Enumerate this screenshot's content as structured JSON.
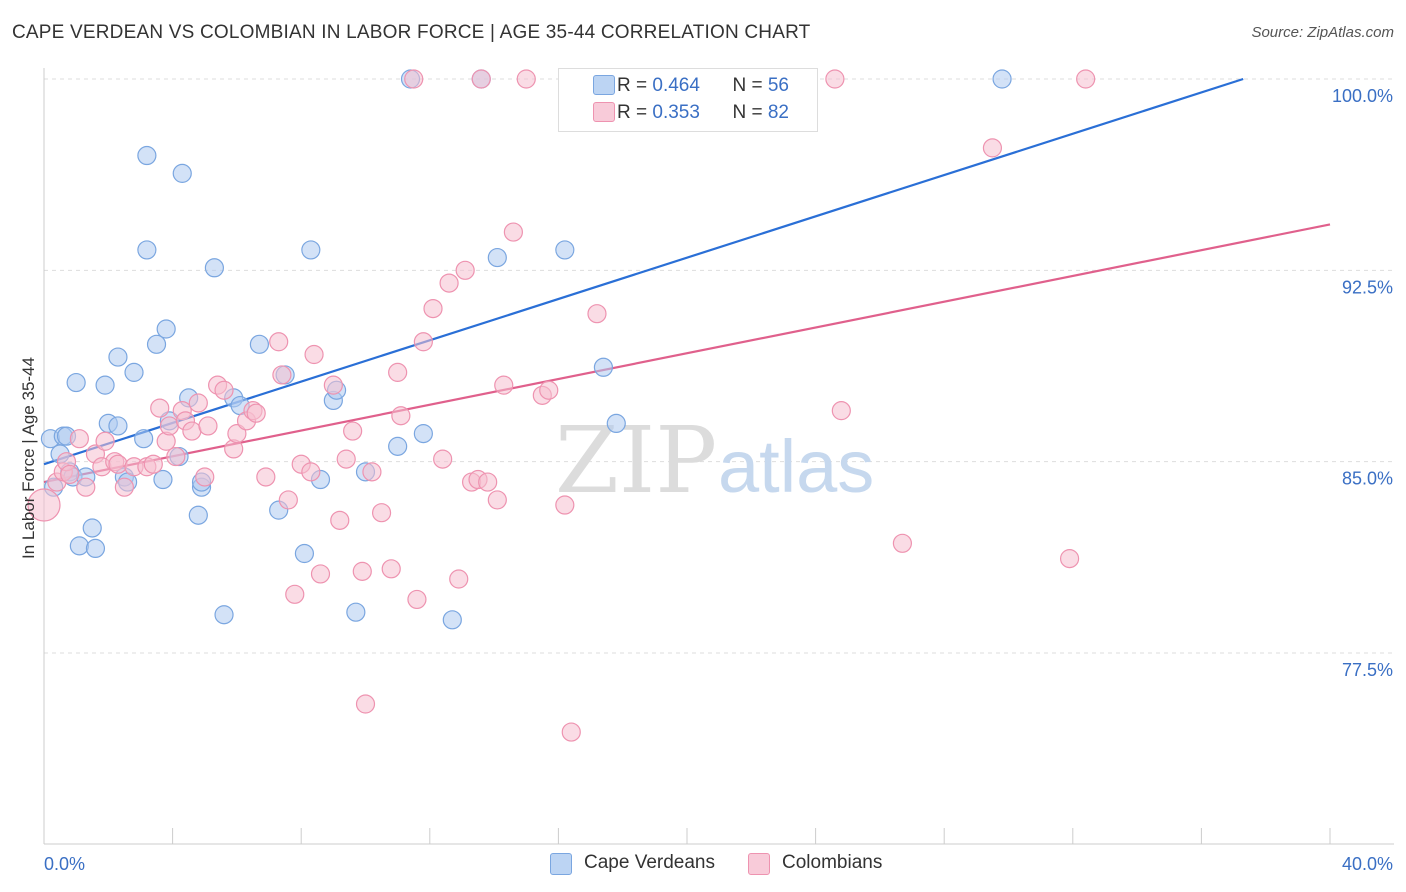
{
  "title": "CAPE VERDEAN VS COLOMBIAN IN LABOR FORCE | AGE 35-44 CORRELATION CHART",
  "source": "Source: ZipAtlas.com",
  "watermark": {
    "zip": "ZIP",
    "atlas": "atlas"
  },
  "legend_top": [
    {
      "r_label": "R = ",
      "r_value": "0.464",
      "n_label": "N = ",
      "n_value": "56"
    },
    {
      "r_label": "R = ",
      "r_value": "0.353",
      "n_label": "N = ",
      "n_value": "82"
    }
  ],
  "legend_bottom": [
    "Cape Verdeans",
    "Colombians"
  ],
  "colors": {
    "blue_fill": "#aecbf0",
    "blue_stroke": "#7aa6e0",
    "blue_line": "#2a6fd6",
    "pink_fill": "#f6bfd0",
    "pink_stroke": "#ee93b0",
    "pink_line": "#e0608c",
    "tick_label": "#3a6fc4",
    "grid": "#dddddd"
  },
  "chart_data": {
    "type": "scatter",
    "title": "CAPE VERDEAN VS COLOMBIAN IN LABOR FORCE | AGE 35-44 CORRELATION CHART",
    "xlabel": "",
    "ylabel": "In Labor Force | Age 35-44",
    "xlim": [
      0,
      40
    ],
    "ylim": [
      70.5,
      101
    ],
    "x_tick_labels": [
      "0.0%",
      "40.0%"
    ],
    "y_ticks": [
      77.5,
      85.0,
      92.5,
      100.0
    ],
    "y_tick_labels": [
      "77.5%",
      "85.0%",
      "92.5%",
      "100.0%"
    ],
    "grid": true,
    "legend_position": "top-center",
    "series": [
      {
        "name": "Cape Verdeans",
        "R": 0.464,
        "N": 56,
        "trend": {
          "x": [
            0,
            37.3
          ],
          "y": [
            84.9,
            100.0
          ]
        },
        "points": [
          [
            0.2,
            85.9
          ],
          [
            0.3,
            84.0
          ],
          [
            0.5,
            85.3
          ],
          [
            0.6,
            86.0
          ],
          [
            0.7,
            86.0
          ],
          [
            0.8,
            84.6
          ],
          [
            0.9,
            84.4
          ],
          [
            1.0,
            88.1
          ],
          [
            1.1,
            81.7
          ],
          [
            1.3,
            84.4
          ],
          [
            1.5,
            82.4
          ],
          [
            1.6,
            81.6
          ],
          [
            1.9,
            88.0
          ],
          [
            2.0,
            86.5
          ],
          [
            2.3,
            89.1
          ],
          [
            2.3,
            86.4
          ],
          [
            2.5,
            84.4
          ],
          [
            2.6,
            84.2
          ],
          [
            2.8,
            88.5
          ],
          [
            3.1,
            85.9
          ],
          [
            3.2,
            97.0
          ],
          [
            3.2,
            93.3
          ],
          [
            3.5,
            89.6
          ],
          [
            3.7,
            84.3
          ],
          [
            3.8,
            90.2
          ],
          [
            3.9,
            86.6
          ],
          [
            4.2,
            85.2
          ],
          [
            4.3,
            96.3
          ],
          [
            4.5,
            87.5
          ],
          [
            4.8,
            82.9
          ],
          [
            4.9,
            84.0
          ],
          [
            4.9,
            84.2
          ],
          [
            5.3,
            92.6
          ],
          [
            5.6,
            79.0
          ],
          [
            5.9,
            87.5
          ],
          [
            6.1,
            87.2
          ],
          [
            6.7,
            89.6
          ],
          [
            7.3,
            83.1
          ],
          [
            7.5,
            88.4
          ],
          [
            8.1,
            81.4
          ],
          [
            8.3,
            93.3
          ],
          [
            8.6,
            84.3
          ],
          [
            9.0,
            87.4
          ],
          [
            9.1,
            87.8
          ],
          [
            9.7,
            79.1
          ],
          [
            10.0,
            84.6
          ],
          [
            11.0,
            85.6
          ],
          [
            11.4,
            100.0
          ],
          [
            11.8,
            86.1
          ],
          [
            12.7,
            78.8
          ],
          [
            13.6,
            100.0
          ],
          [
            14.1,
            93.0
          ],
          [
            16.2,
            93.3
          ],
          [
            17.4,
            88.7
          ],
          [
            17.8,
            86.5
          ],
          [
            29.8,
            100.0
          ]
        ]
      },
      {
        "name": "Colombians",
        "R": 0.353,
        "N": 82,
        "trend": {
          "x": [
            0,
            40
          ],
          "y": [
            84.2,
            94.3
          ]
        },
        "points": [
          [
            0.0,
            83.3
          ],
          [
            0.4,
            84.2
          ],
          [
            0.6,
            84.6
          ],
          [
            0.7,
            85.0
          ],
          [
            0.8,
            84.5
          ],
          [
            1.1,
            85.9
          ],
          [
            1.3,
            84.0
          ],
          [
            1.6,
            85.3
          ],
          [
            1.8,
            84.8
          ],
          [
            1.9,
            85.8
          ],
          [
            2.2,
            85.0
          ],
          [
            2.3,
            84.9
          ],
          [
            2.5,
            84.0
          ],
          [
            2.8,
            84.8
          ],
          [
            3.2,
            84.8
          ],
          [
            3.4,
            84.9
          ],
          [
            3.6,
            87.1
          ],
          [
            3.8,
            85.8
          ],
          [
            3.9,
            86.4
          ],
          [
            4.1,
            85.2
          ],
          [
            4.3,
            87.0
          ],
          [
            4.4,
            86.6
          ],
          [
            4.6,
            86.2
          ],
          [
            4.8,
            87.3
          ],
          [
            5.0,
            84.4
          ],
          [
            5.1,
            86.4
          ],
          [
            5.4,
            88.0
          ],
          [
            5.6,
            87.8
          ],
          [
            5.9,
            85.5
          ],
          [
            6.0,
            86.1
          ],
          [
            6.3,
            86.6
          ],
          [
            6.5,
            87.0
          ],
          [
            6.6,
            86.9
          ],
          [
            6.9,
            84.4
          ],
          [
            7.3,
            89.7
          ],
          [
            7.4,
            88.4
          ],
          [
            7.6,
            83.5
          ],
          [
            7.8,
            79.8
          ],
          [
            8.0,
            84.9
          ],
          [
            8.3,
            84.6
          ],
          [
            8.4,
            89.2
          ],
          [
            8.6,
            80.6
          ],
          [
            9.0,
            88.0
          ],
          [
            9.2,
            82.7
          ],
          [
            9.4,
            85.1
          ],
          [
            9.6,
            86.2
          ],
          [
            9.9,
            80.7
          ],
          [
            10.0,
            75.5
          ],
          [
            10.2,
            84.6
          ],
          [
            10.5,
            83.0
          ],
          [
            10.8,
            80.8
          ],
          [
            11.0,
            88.5
          ],
          [
            11.1,
            86.8
          ],
          [
            11.5,
            100.0
          ],
          [
            11.6,
            79.6
          ],
          [
            11.8,
            89.7
          ],
          [
            12.1,
            91.0
          ],
          [
            12.4,
            85.1
          ],
          [
            12.6,
            92.0
          ],
          [
            12.9,
            80.4
          ],
          [
            13.1,
            92.5
          ],
          [
            13.3,
            84.2
          ],
          [
            13.5,
            84.3
          ],
          [
            13.6,
            100.0
          ],
          [
            13.8,
            84.2
          ],
          [
            14.1,
            83.5
          ],
          [
            14.3,
            88.0
          ],
          [
            14.6,
            94.0
          ],
          [
            15.0,
            100.0
          ],
          [
            15.5,
            87.6
          ],
          [
            15.7,
            87.8
          ],
          [
            16.2,
            83.3
          ],
          [
            16.4,
            74.4
          ],
          [
            17.2,
            90.8
          ],
          [
            22.3,
            100.0
          ],
          [
            24.8,
            87.0
          ],
          [
            26.7,
            81.8
          ],
          [
            29.5,
            97.3
          ],
          [
            31.9,
            81.2
          ],
          [
            32.4,
            100.0
          ],
          [
            16.8,
            100.0
          ],
          [
            24.6,
            100.0
          ]
        ]
      }
    ]
  }
}
